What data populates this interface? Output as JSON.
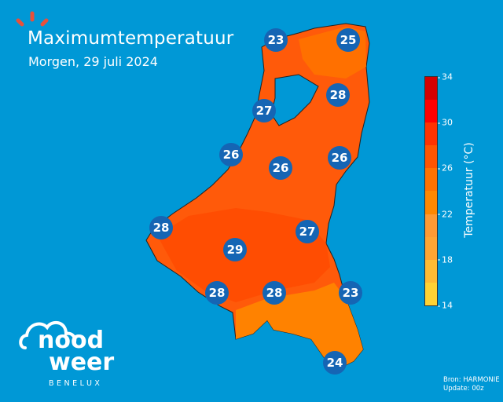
{
  "header": {
    "title": "Maximumtemperatuur",
    "subtitle": "Morgen, 29 juli 2024"
  },
  "map": {
    "region": "Benelux",
    "markers": [
      "23",
      "25",
      "28",
      "27",
      "26",
      "26",
      "26",
      "28",
      "27",
      "29",
      "28",
      "28",
      "23",
      "24"
    ]
  },
  "colorbar": {
    "label": "Temperatuur (°C)",
    "ticks": [
      "34",
      "30",
      "26",
      "22",
      "18",
      "14"
    ],
    "colors": [
      "#d40000",
      "#ff0000",
      "#ff3300",
      "#ff5500",
      "#ff7200",
      "#ff8800",
      "#ff9a33",
      "#ffa533",
      "#ffbb33",
      "#ffd233"
    ],
    "range": [
      14,
      34
    ]
  },
  "footer": {
    "source": "Bron: HARMONIE",
    "update": "Update: 00z"
  },
  "logo": {
    "line1": "nood",
    "line2": "weer",
    "sub": "BENELUX"
  },
  "colors": {
    "background": "#0098d6",
    "marker": "#1565b4",
    "accent": "#e8503a"
  }
}
